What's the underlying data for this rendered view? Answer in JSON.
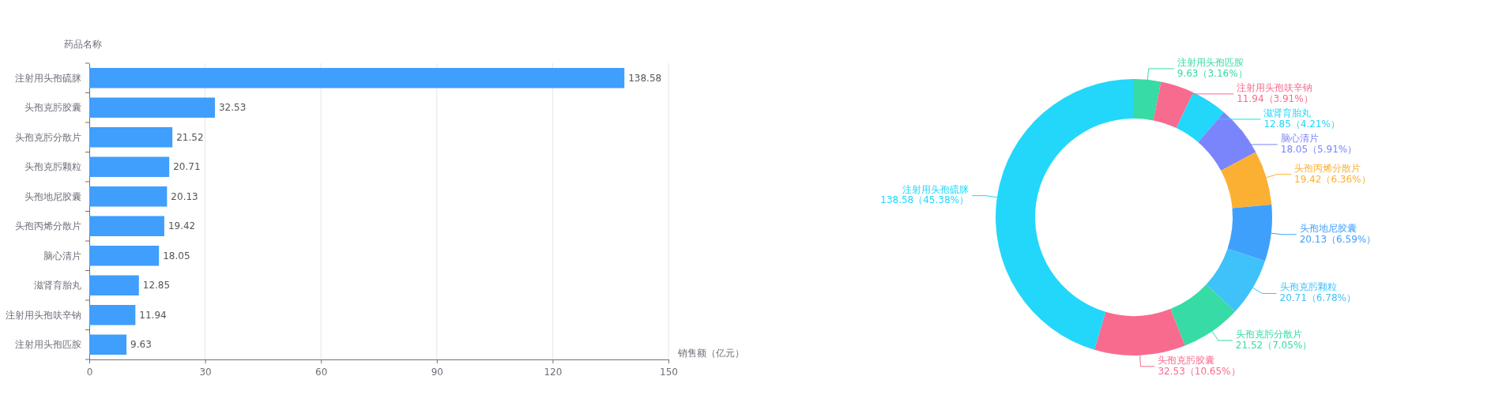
{
  "chart_data": [
    {
      "type": "bar",
      "orientation": "horizontal",
      "ylabel": "药品名称",
      "xlabel": "销售额（亿元）",
      "categories": [
        "注射用头孢硫脒",
        "头孢克肟胶囊",
        "头孢克肟分散片",
        "头孢克肟颗粒",
        "头孢地尼胶囊",
        "头孢丙烯分散片",
        "脑心清片",
        "滋肾育胎丸",
        "注射用头孢呋辛钠",
        "注射用头孢匹胺"
      ],
      "values": [
        138.58,
        32.53,
        21.52,
        20.71,
        20.13,
        19.42,
        18.05,
        12.85,
        11.94,
        9.63
      ],
      "color": "#409efc",
      "xlim": [
        0,
        150
      ],
      "xticks": [
        0,
        30,
        60,
        90,
        120,
        150
      ],
      "grid": "x",
      "data_labels": true
    },
    {
      "type": "donut",
      "categories": [
        "注射用头孢匹胺",
        "注射用头孢呋辛钠",
        "滋肾育胎丸",
        "脑心清片",
        "头孢丙烯分散片",
        "头孢地尼胶囊",
        "头孢克肟颗粒",
        "头孢克肟分散片",
        "头孢克肟胶囊",
        "注射用头孢硫脒"
      ],
      "values": [
        9.63,
        11.94,
        12.85,
        18.05,
        19.42,
        20.13,
        20.71,
        21.52,
        32.53,
        138.58
      ],
      "value_labels": [
        "9.63（3.16%）",
        "11.94（3.91%）",
        "12.85（4.21%）",
        "18.05（5.91%）",
        "19.42（6.36%）",
        "20.13（6.59%）",
        "20.71（6.78%）",
        "21.52（7.05%）",
        "32.53（10.65%）",
        "138.58（45.38%）"
      ],
      "colors": [
        "#37dba5",
        "#f76b8f",
        "#22d7fa",
        "#7b85fb",
        "#fbb034",
        "#3fa0fc",
        "#3fc1fa",
        "#37dba5",
        "#f76b8f",
        "#22d7fa"
      ]
    }
  ]
}
